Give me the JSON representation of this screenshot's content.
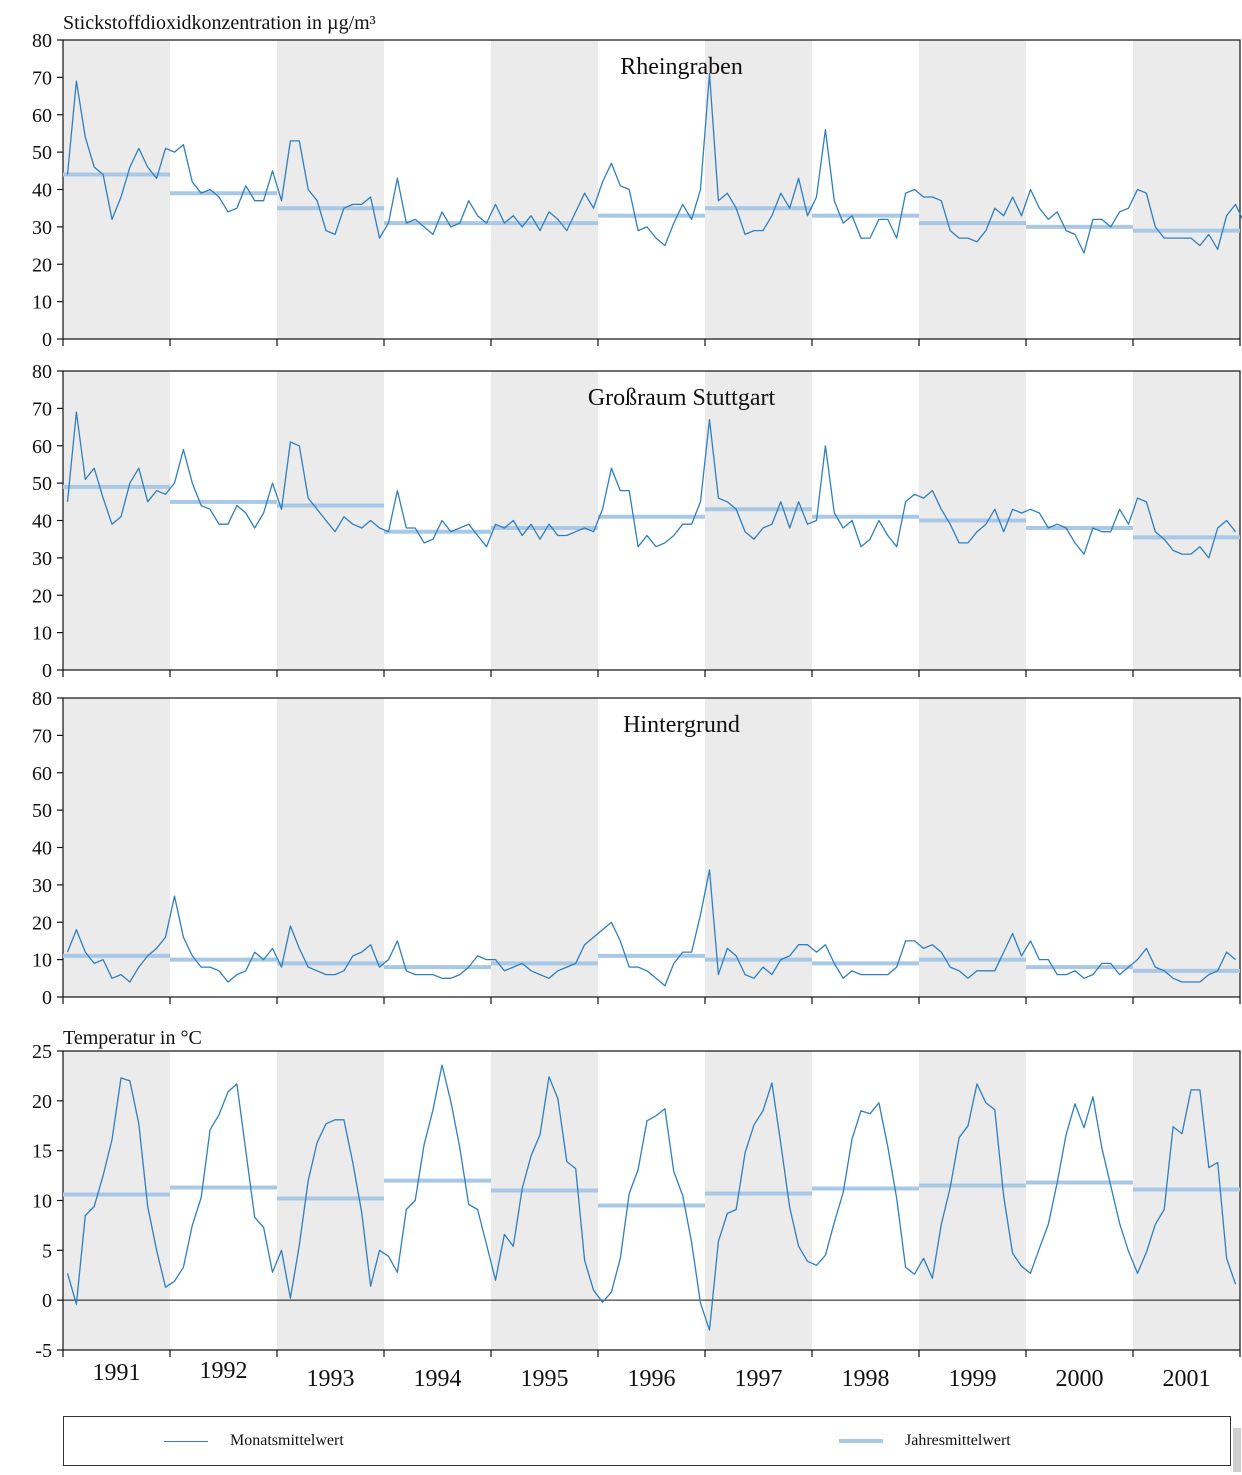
{
  "chart_data": [
    {
      "type": "line",
      "title": "Rheingraben",
      "ylabel": "Stickstoffdioxidkonzentration in µg/m³",
      "ylim": [
        0,
        80
      ],
      "yticks": [
        0,
        10,
        20,
        30,
        40,
        50,
        60,
        70,
        80
      ],
      "years": [
        "1991",
        "1992",
        "1993",
        "1994",
        "1995",
        "1996",
        "1997",
        "1998",
        "1999",
        "2000",
        "2001"
      ],
      "series": [
        {
          "name": "Monatsmittelwert",
          "values": [
            44,
            69,
            54,
            46,
            44,
            32,
            38,
            46,
            51,
            46,
            43,
            51,
            50,
            52,
            42,
            39,
            40,
            38,
            34,
            35,
            41,
            37,
            37,
            45,
            37,
            53,
            53,
            40,
            37,
            29,
            28,
            35,
            36,
            36,
            38,
            27,
            31,
            43,
            31,
            32,
            30,
            28,
            34,
            30,
            31,
            37,
            33,
            31,
            36,
            31,
            33,
            30,
            33,
            29,
            34,
            32,
            29,
            34,
            39,
            35,
            42,
            47,
            41,
            40,
            29,
            30,
            27,
            25,
            31,
            36,
            32,
            40,
            71,
            37,
            39,
            35,
            28,
            29,
            29,
            33,
            39,
            35,
            43,
            33,
            38,
            56,
            37,
            31,
            33,
            27,
            27,
            32,
            32,
            27,
            39,
            40,
            38,
            38,
            37,
            29,
            27,
            27,
            26,
            29,
            35,
            33,
            38,
            33,
            40,
            35,
            32,
            34,
            29,
            28,
            23,
            32,
            32,
            30,
            34,
            35,
            40,
            39,
            30,
            27,
            27,
            27,
            27,
            25,
            28,
            24,
            33,
            36,
            31
          ]
        },
        {
          "name": "Jahresmittelwert",
          "values": [
            44,
            39,
            35,
            31,
            31,
            33,
            35,
            33,
            31,
            30,
            29
          ]
        }
      ]
    },
    {
      "type": "line",
      "title": "Großraum Stuttgart",
      "ylim": [
        0,
        80
      ],
      "yticks": [
        0,
        10,
        20,
        30,
        40,
        50,
        60,
        70,
        80
      ],
      "series": [
        {
          "name": "Monatsmittelwert",
          "values": [
            45,
            69,
            51,
            54,
            46,
            39,
            41,
            50,
            54,
            45,
            48,
            47,
            50,
            59,
            50,
            44,
            43,
            39,
            39,
            44,
            42,
            38,
            42,
            50,
            43,
            61,
            60,
            46,
            43,
            40,
            37,
            41,
            39,
            38,
            40,
            38,
            37,
            48,
            38,
            38,
            34,
            35,
            40,
            37,
            38,
            39,
            36,
            33,
            39,
            38,
            40,
            36,
            39,
            35,
            39,
            36,
            36,
            37,
            38,
            37,
            43,
            54,
            48,
            48,
            33,
            36,
            33,
            34,
            36,
            39,
            39,
            45,
            67,
            46,
            45,
            43,
            37,
            35,
            38,
            39,
            45,
            38,
            45,
            39,
            40,
            60,
            42,
            38,
            40,
            33,
            35,
            40,
            36,
            33,
            45,
            47,
            46,
            48,
            43,
            39,
            34,
            34,
            37,
            39,
            43,
            37,
            43,
            42,
            43,
            42,
            38,
            39,
            38,
            34,
            31,
            38,
            37,
            37,
            43,
            39,
            46,
            45,
            37,
            35,
            32,
            31,
            31,
            33,
            30,
            38,
            40,
            37
          ]
        },
        {
          "name": "Jahresmittelwert",
          "values": [
            49,
            45,
            44,
            37,
            38,
            41,
            43,
            41,
            40,
            38,
            35.5
          ]
        }
      ]
    },
    {
      "type": "line",
      "title": "Hintergrund",
      "ylim": [
        0,
        80
      ],
      "yticks": [
        0,
        10,
        20,
        30,
        40,
        50,
        60,
        70,
        80
      ],
      "series": [
        {
          "name": "Monatsmittelwert",
          "values": [
            12,
            18,
            12,
            9,
            10,
            5,
            6,
            4,
            8,
            11,
            13,
            16,
            27,
            16,
            11,
            8,
            8,
            7,
            4,
            6,
            7,
            12,
            10,
            13,
            8,
            19,
            13,
            8,
            7,
            6,
            6,
            7,
            11,
            12,
            14,
            8,
            10,
            15,
            7,
            6,
            6,
            6,
            5,
            5,
            6,
            8,
            11,
            10,
            10,
            7,
            8,
            9,
            7,
            6,
            5,
            7,
            8,
            9,
            14,
            16,
            18,
            20,
            15,
            8,
            8,
            7,
            5,
            3,
            9,
            12,
            12,
            22,
            34,
            6,
            13,
            11,
            6,
            5,
            8,
            6,
            10,
            11,
            14,
            14,
            12,
            14,
            9,
            5,
            7,
            6,
            6,
            6,
            6,
            8,
            15,
            15,
            13,
            14,
            12,
            8,
            7,
            5,
            7,
            7,
            7,
            12,
            17,
            11,
            15,
            10,
            10,
            6,
            6,
            7,
            5,
            6,
            9,
            9,
            6,
            8,
            10,
            13,
            8,
            7,
            5,
            4,
            4,
            4,
            6,
            7,
            12,
            10
          ]
        },
        {
          "name": "Jahresmittelwert",
          "values": [
            11,
            10,
            9,
            8,
            9,
            11,
            10,
            9,
            10,
            8,
            7
          ]
        }
      ]
    },
    {
      "type": "line",
      "title": "",
      "ylabel": "Temperatur in °C",
      "ylim": [
        -5,
        25
      ],
      "yticks": [
        -5,
        0,
        5,
        10,
        15,
        20,
        25
      ],
      "series": [
        {
          "name": "Monatsmittelwert",
          "values": [
            2.7,
            -0.4,
            8.5,
            9.4,
            12.5,
            16.1,
            22.3,
            22.0,
            17.7,
            9.4,
            5.0,
            1.3,
            1.9,
            3.3,
            7.5,
            10.3,
            17.1,
            18.6,
            20.9,
            21.7,
            15.0,
            8.3,
            7.3,
            2.8,
            5.0,
            0.2,
            5.5,
            12.0,
            15.8,
            17.7,
            18.1,
            18.1,
            13.8,
            8.8,
            1.4,
            5.0,
            4.4,
            2.8,
            9.1,
            10.0,
            15.6,
            19.1,
            23.6,
            19.9,
            15.3,
            9.6,
            9.1,
            5.6,
            2.0,
            6.6,
            5.4,
            11.2,
            14.5,
            16.6,
            22.4,
            20.2,
            13.9,
            13.2,
            4.0,
            1.0,
            -0.2,
            0.8,
            4.2,
            10.7,
            13.1,
            18.0,
            18.5,
            19.2,
            12.9,
            10.5,
            5.8,
            -0.3,
            -3.0,
            5.9,
            8.7,
            9.1,
            14.8,
            17.6,
            19.0,
            21.8,
            15.7,
            9.3,
            5.4,
            3.9,
            3.5,
            4.5,
            7.8,
            10.8,
            16.2,
            19.0,
            18.7,
            19.8,
            15.4,
            10.2,
            3.3,
            2.6,
            4.2,
            2.2,
            7.6,
            11.3,
            16.3,
            17.5,
            21.7,
            19.8,
            19.1,
            10.4,
            4.7,
            3.4,
            2.7,
            5.2,
            7.6,
            11.8,
            16.6,
            19.7,
            17.3,
            20.4,
            15.3,
            11.5,
            7.7,
            4.9,
            2.7,
            4.8,
            7.6,
            9.1,
            17.4,
            16.7,
            21.1,
            21.1,
            13.3,
            13.8,
            4.2,
            1.6
          ]
        },
        {
          "name": "Jahresmittelwert",
          "values": [
            10.6,
            11.3,
            10.2,
            12.0,
            11.0,
            9.5,
            10.7,
            11.2,
            11.5,
            11.8,
            11.1
          ]
        }
      ]
    }
  ],
  "legend": {
    "monthly_label": "Monatsmittelwert",
    "annual_label": "Jahresmittelwert"
  },
  "colors": {
    "monthly": "#2f7fc0",
    "annual": "#a8c8e6",
    "band": "#ebebeb"
  }
}
